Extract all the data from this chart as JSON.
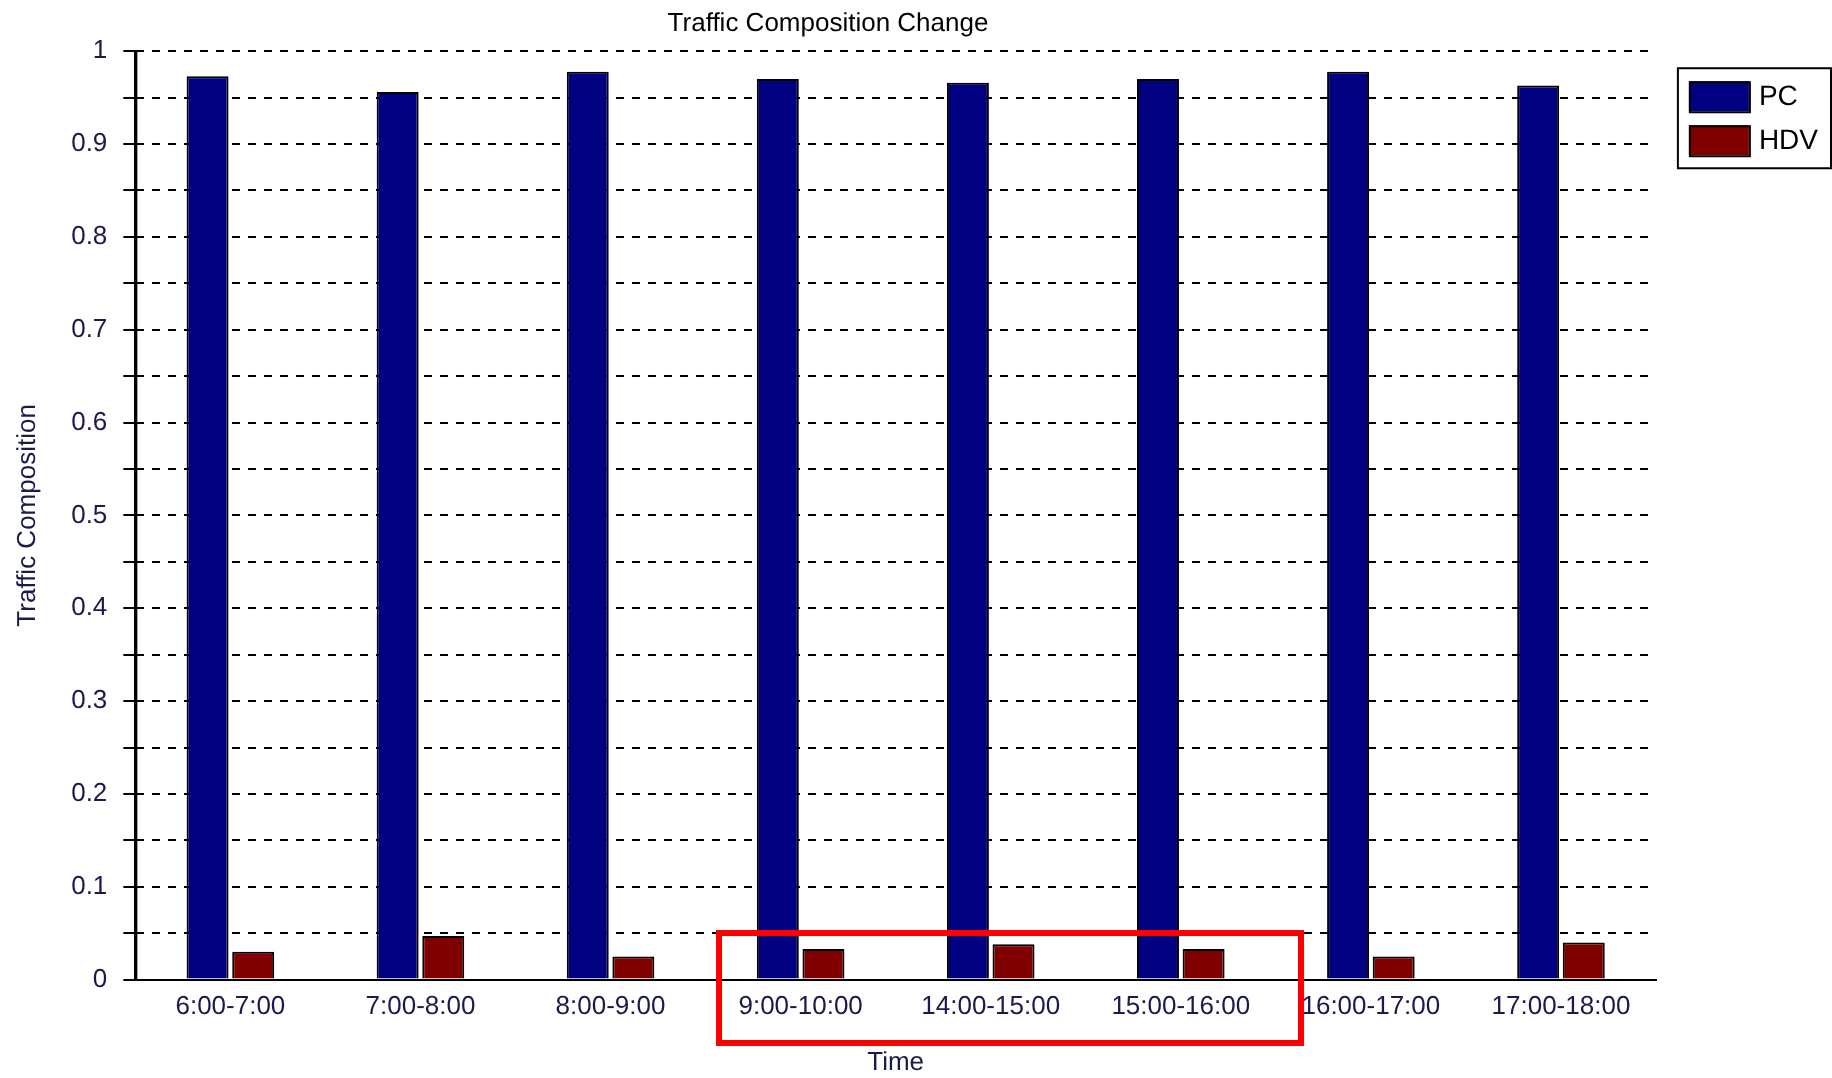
{
  "chart_data": {
    "type": "bar",
    "title": "Traffic Composition Change",
    "xlabel": "Time",
    "ylabel": "Traffic Composition",
    "categories": [
      "6:00-7:00",
      "7:00-8:00",
      "8:00-9:00",
      "9:00-10:00",
      "14:00-15:00",
      "15:00-16:00",
      "16:00-17:00",
      "17:00-18:00"
    ],
    "series": [
      {
        "name": "PC",
        "color": "#000080",
        "values": [
          0.973,
          0.956,
          0.978,
          0.97,
          0.966,
          0.97,
          0.978,
          0.963
        ]
      },
      {
        "name": "HDV",
        "color": "#800000",
        "values": [
          0.03,
          0.047,
          0.025,
          0.033,
          0.038,
          0.033,
          0.025,
          0.04
        ]
      }
    ],
    "ylim": [
      0,
      1
    ],
    "yticks": [
      0,
      {
        "value": 0.05,
        "label": null
      },
      0.1,
      {
        "value": 0.15,
        "label": null
      },
      0.2,
      {
        "value": 0.25,
        "label": null
      },
      0.3,
      {
        "value": 0.35,
        "label": null
      },
      0.4,
      {
        "value": 0.45,
        "label": null
      },
      0.5,
      {
        "value": 0.55,
        "label": null
      },
      0.6,
      {
        "value": 0.65,
        "label": null
      },
      0.7,
      {
        "value": 0.75,
        "label": null
      },
      0.8,
      {
        "value": 0.85,
        "label": null
      },
      0.9,
      {
        "value": 0.95,
        "label": null
      },
      1
    ],
    "grid": "y",
    "legend": "top right"
  }
}
